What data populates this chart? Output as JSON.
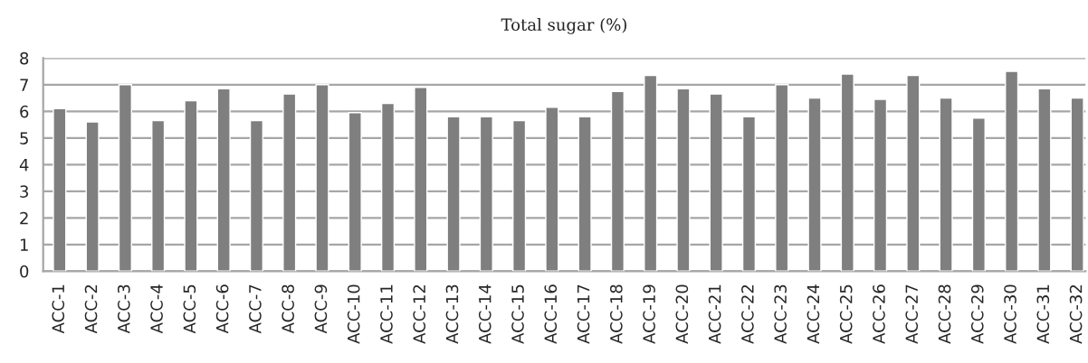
{
  "chart_data": {
    "type": "bar",
    "title": "Total sugar (%)",
    "categories": [
      "ACC-1",
      "ACC-2",
      "ACC-3",
      "ACC-4",
      "ACC-5",
      "ACC-6",
      "ACC-7",
      "ACC-8",
      "ACC-9",
      "ACC-10",
      "ACC-11",
      "ACC-12",
      "ACC-13",
      "ACC-14",
      "ACC-15",
      "ACC-16",
      "ACC-17",
      "ACC-18",
      "ACC-19",
      "ACC-20",
      "ACC-21",
      "ACC-22",
      "ACC-23",
      "ACC-24",
      "ACC-25",
      "ACC-26",
      "ACC-27",
      "ACC-28",
      "ACC-29",
      "ACC-30",
      "ACC-31",
      "ACC-32"
    ],
    "values": [
      6.1,
      5.6,
      7.0,
      5.65,
      6.4,
      6.85,
      5.65,
      6.65,
      7.0,
      5.95,
      6.3,
      6.9,
      5.8,
      5.8,
      5.65,
      6.15,
      5.8,
      6.75,
      7.35,
      6.85,
      6.65,
      5.8,
      7.0,
      6.5,
      7.4,
      6.45,
      7.35,
      6.5,
      5.75,
      7.5,
      6.85,
      6.5
    ],
    "color": "#7f7f7f",
    "ylim": [
      0,
      8
    ],
    "yticks": [
      0,
      1,
      2,
      3,
      4,
      5,
      6,
      7,
      8
    ],
    "grid": "y"
  }
}
